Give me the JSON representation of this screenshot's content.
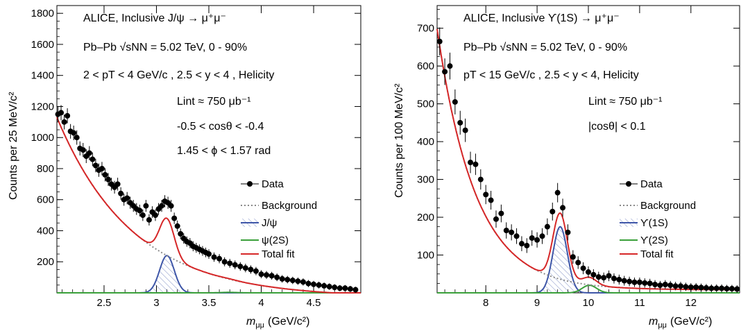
{
  "chart_data": [
    {
      "type": "scatter",
      "xlabel_main": "m",
      "xlabel_sub": "μμ",
      "xlabel_units": "(GeV/c²)",
      "ylabel": "Counts per  25 MeV/c²",
      "xlim": [
        2.05,
        4.95
      ],
      "ylim": [
        0,
        1850
      ],
      "x_ticks": [
        2.5,
        3,
        3.5,
        4,
        4.5
      ],
      "y_ticks": [
        200,
        400,
        600,
        800,
        1000,
        1200,
        1400,
        1600,
        1800
      ],
      "annotations": [
        "ALICE, Inclusive J/ψ → μ⁺μ⁻",
        "Pb–Pb √sNN = 5.02 TeV, 0 - 90%",
        "2 < pT < 4 GeV/c , 2.5 < y < 4 , Helicity",
        "Lint ≈ 750 μb⁻¹",
        "-0.5 < cosθ < -0.4",
        "1.45 < ϕ < 1.57 rad"
      ],
      "legend": [
        "Data",
        "Background",
        "J/ψ",
        "ψ(2S)",
        "Total fit"
      ],
      "legend_position": "center-right",
      "signal": {
        "name": "J/ψ",
        "mean": 3.1,
        "sigma": 0.07,
        "amplitude": 240
      },
      "signal2": {
        "name": "ψ(2S)",
        "mean": 3.69,
        "sigma": 0.08,
        "amplitude": 3
      },
      "background": {
        "A": 1160,
        "x0": 2.05,
        "tau": 0.72,
        "C": -30
      },
      "data_x": [
        2.06,
        2.09,
        2.12,
        2.15,
        2.18,
        2.21,
        2.24,
        2.27,
        2.3,
        2.33,
        2.36,
        2.39,
        2.42,
        2.45,
        2.48,
        2.51,
        2.54,
        2.57,
        2.6,
        2.63,
        2.66,
        2.69,
        2.72,
        2.75,
        2.78,
        2.81,
        2.84,
        2.87,
        2.9,
        2.93,
        2.96,
        2.99,
        3.02,
        3.05,
        3.08,
        3.11,
        3.14,
        3.17,
        3.2,
        3.23,
        3.26,
        3.29,
        3.32,
        3.35,
        3.38,
        3.41,
        3.44,
        3.47,
        3.5,
        3.55,
        3.6,
        3.65,
        3.7,
        3.75,
        3.8,
        3.85,
        3.9,
        3.95,
        4.0,
        4.05,
        4.1,
        4.15,
        4.2,
        4.25,
        4.3,
        4.35,
        4.4,
        4.45,
        4.5,
        4.55,
        4.6,
        4.65,
        4.7,
        4.75,
        4.8,
        4.85,
        4.9
      ],
      "data_y": [
        1150,
        1160,
        1100,
        1140,
        1040,
        1030,
        1000,
        930,
        920,
        880,
        900,
        860,
        820,
        790,
        800,
        760,
        730,
        700,
        680,
        700,
        640,
        600,
        610,
        580,
        560,
        540,
        530,
        500,
        560,
        470,
        520,
        500,
        540,
        560,
        590,
        580,
        560,
        480,
        430,
        380,
        350,
        330,
        320,
        300,
        290,
        280,
        270,
        260,
        250,
        230,
        220,
        200,
        190,
        180,
        170,
        160,
        150,
        140,
        120,
        115,
        110,
        100,
        90,
        85,
        80,
        75,
        70,
        60,
        55,
        50,
        45,
        40,
        35,
        30,
        30,
        25,
        20
      ]
    },
    {
      "type": "scatter",
      "xlabel_main": "m",
      "xlabel_sub": "μμ",
      "xlabel_units": "(GeV/c²)",
      "ylabel": "Counts per 100 MeV/c²",
      "xlim": [
        7.05,
        12.95
      ],
      "ylim": [
        0,
        760
      ],
      "x_ticks": [
        8,
        9,
        10,
        11,
        12
      ],
      "y_ticks": [
        100,
        200,
        300,
        400,
        500,
        600,
        700
      ],
      "annotations": [
        "ALICE, Inclusive ϒ(1S) → μ⁺μ⁻",
        "Pb–Pb √sNN = 5.02 TeV, 0 - 90%",
        "pT < 15 GeV/c , 2.5 < y < 4, Helicity",
        "Lint ≈ 750 μb⁻¹",
        "|cosθ| < 0.1"
      ],
      "legend": [
        "Data",
        "Background",
        "ϒ(1S)",
        "ϒ(2S)",
        "Total fit"
      ],
      "legend_position": "center-right",
      "signal": {
        "name": "ϒ(1S)",
        "mean": 9.45,
        "sigma": 0.14,
        "amplitude": 175
      },
      "signal2": {
        "name": "ϒ(2S)",
        "mean": 10.02,
        "sigma": 0.14,
        "amplitude": 20
      },
      "background": {
        "A": 690,
        "x0": 7.05,
        "tau": 0.75,
        "C": 8
      },
      "data_x": [
        7.1,
        7.2,
        7.3,
        7.4,
        7.5,
        7.6,
        7.7,
        7.8,
        7.9,
        8.0,
        8.1,
        8.2,
        8.3,
        8.4,
        8.5,
        8.6,
        8.7,
        8.8,
        8.9,
        9.0,
        9.1,
        9.2,
        9.3,
        9.4,
        9.5,
        9.6,
        9.7,
        9.8,
        9.9,
        10.0,
        10.1,
        10.2,
        10.3,
        10.4,
        10.5,
        10.6,
        10.7,
        10.8,
        10.9,
        11.0,
        11.1,
        11.2,
        11.3,
        11.4,
        11.5,
        11.6,
        11.7,
        11.8,
        11.9,
        12.0,
        12.1,
        12.2,
        12.3,
        12.4,
        12.5,
        12.6,
        12.7,
        12.8,
        12.9
      ],
      "data_y": [
        665,
        585,
        600,
        505,
        450,
        430,
        345,
        340,
        300,
        260,
        245,
        195,
        210,
        165,
        160,
        150,
        130,
        125,
        145,
        140,
        150,
        175,
        215,
        265,
        225,
        160,
        95,
        80,
        65,
        55,
        48,
        42,
        40,
        45,
        38,
        35,
        32,
        30,
        28,
        28,
        26,
        25,
        22,
        20,
        22,
        20,
        18,
        18,
        16,
        15,
        15,
        14,
        13,
        12,
        12,
        12,
        11,
        11,
        10
      ]
    }
  ]
}
